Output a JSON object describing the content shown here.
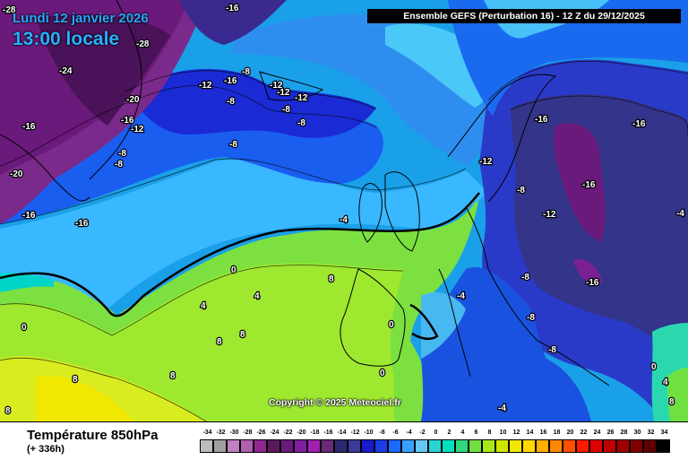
{
  "header": {
    "date": "Lundi 12 janvier 2026",
    "time": "13:00 locale",
    "run": "Ensemble GEFS  (Perturbation 16)  -  12 Z du 29/12/2025"
  },
  "copyright": "Copyright © 2025 Meteociel.fr",
  "footer": {
    "field": "Température 850hPa",
    "lead": "(+ 336h)"
  },
  "legend": {
    "ticks": [
      "-34",
      "-32",
      "-30",
      "-28",
      "-26",
      "-24",
      "-22",
      "-20",
      "-18",
      "-16",
      "-14",
      "-12",
      "-10",
      "-8",
      "-6",
      "-4",
      "-2",
      "0",
      "2",
      "4",
      "6",
      "8",
      "10",
      "12",
      "14",
      "16",
      "18",
      "20",
      "22",
      "24",
      "26",
      "28",
      "30",
      "32",
      "34"
    ],
    "colors": [
      "#bdbdbd",
      "#a0a0a0",
      "#c080c0",
      "#b060b0",
      "#902890",
      "#5a1a5a",
      "#6a1a7a",
      "#8020a0",
      "#a020b0",
      "#6a2a78",
      "#2a2a70",
      "#3a3a99",
      "#1a1acc",
      "#1a3ee6",
      "#1a6aff",
      "#3aa0ff",
      "#66c8f0",
      "#2ad4d4",
      "#00e0c0",
      "#30d880",
      "#70e040",
      "#a8e818",
      "#d0e800",
      "#f0e800",
      "#ffd800",
      "#ffb000",
      "#ff8800",
      "#ff5000",
      "#ff1800",
      "#e00000",
      "#c00000",
      "#a00000",
      "#800000",
      "#600000",
      "#000000"
    ]
  },
  "isotherm_labels": [
    {
      "text": "-28"
    },
    {
      "text": "-16"
    },
    {
      "text": "-28"
    },
    {
      "text": "-24"
    },
    {
      "text": "-12"
    },
    {
      "text": "-16"
    },
    {
      "text": "-8"
    },
    {
      "text": "-8"
    },
    {
      "text": "-12"
    },
    {
      "text": "-12"
    },
    {
      "text": "-12"
    },
    {
      "text": "-20"
    },
    {
      "text": "-16"
    },
    {
      "text": "-12"
    },
    {
      "text": "-8"
    },
    {
      "text": "-8"
    },
    {
      "text": "-8"
    },
    {
      "text": "-8"
    },
    {
      "text": "-8"
    },
    {
      "text": "-16"
    },
    {
      "text": "-20"
    },
    {
      "text": "-16"
    },
    {
      "text": "-16"
    },
    {
      "text": "-12"
    },
    {
      "text": "-16"
    },
    {
      "text": "-16"
    },
    {
      "text": "-8"
    },
    {
      "text": "-16"
    },
    {
      "text": "-12"
    },
    {
      "text": "-4"
    },
    {
      "text": "-4"
    },
    {
      "text": "0"
    },
    {
      "text": "8"
    },
    {
      "text": "4"
    },
    {
      "text": "4"
    },
    {
      "text": "0"
    },
    {
      "text": "-8"
    },
    {
      "text": "-16"
    },
    {
      "text": "-4"
    },
    {
      "text": "-8"
    },
    {
      "text": "0"
    },
    {
      "text": "-8"
    },
    {
      "text": "8"
    },
    {
      "text": "8"
    },
    {
      "text": "8"
    },
    {
      "text": "0"
    },
    {
      "text": "8"
    },
    {
      "text": "8"
    },
    {
      "text": "-4"
    },
    {
      "text": "0"
    },
    {
      "text": "4"
    },
    {
      "text": "8"
    },
    {
      "text": "-8"
    },
    {
      "text": "-8"
    }
  ]
}
